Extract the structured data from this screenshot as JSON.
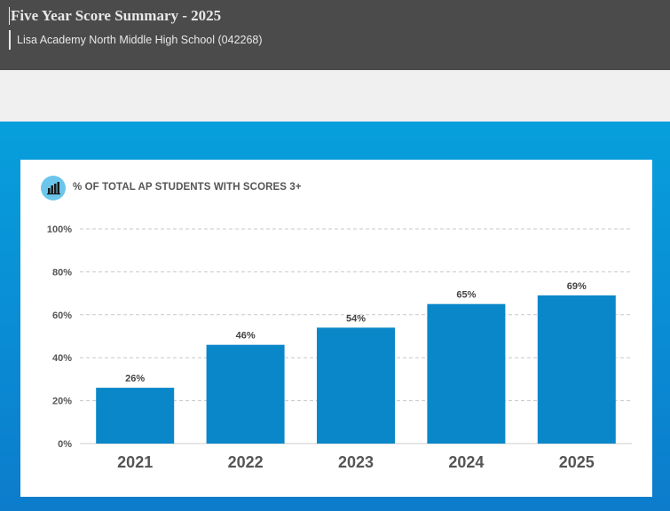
{
  "header": {
    "title": "Five Year Score Summary - 2025",
    "subtitle": "Lisa Academy North Middle High School (042268)"
  },
  "colors": {
    "header_bg": "#4b4b4b",
    "bar": "#0a87c9",
    "band": "#079fdc",
    "icon_circle": "#6cc6ec"
  },
  "chart_icon": "bar-chart-icon",
  "chart_data": {
    "type": "bar",
    "title": "% OF TOTAL AP STUDENTS WITH SCORES 3+",
    "categories": [
      "2021",
      "2022",
      "2023",
      "2024",
      "2025"
    ],
    "values": [
      26,
      46,
      54,
      65,
      69
    ],
    "value_labels": [
      "26%",
      "46%",
      "54%",
      "65%",
      "69%"
    ],
    "ylim": [
      0,
      100
    ],
    "yticks": [
      0,
      20,
      40,
      60,
      80,
      100
    ],
    "ytick_labels": [
      "0%",
      "20%",
      "40%",
      "60%",
      "80%",
      "100%"
    ],
    "grid": true,
    "xlabel": "",
    "ylabel": ""
  }
}
